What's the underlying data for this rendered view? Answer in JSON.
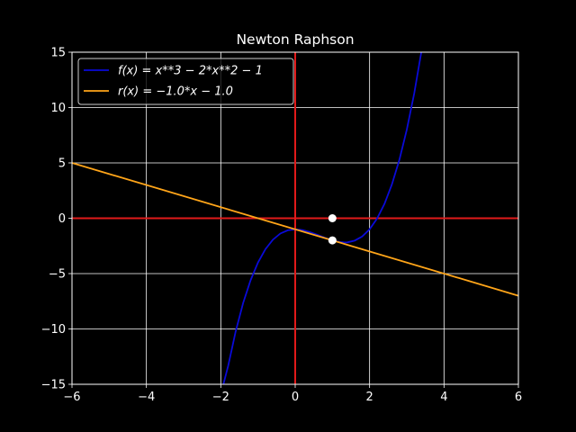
{
  "chart_data": {
    "type": "line",
    "title": "Newton Raphson",
    "xlabel": "",
    "ylabel": "",
    "xlim": [
      -6,
      6
    ],
    "ylim": [
      -15,
      15
    ],
    "xticks": [
      -6,
      -4,
      -2,
      0,
      2,
      4,
      6
    ],
    "yticks": [
      -15,
      -10,
      -5,
      0,
      5,
      10,
      15
    ],
    "grid": true,
    "legend_position": "top-left",
    "axis_lines": {
      "x0": 0,
      "y0": 0,
      "color": "#e11a1a"
    },
    "series": [
      {
        "name": "f(x) = x**3 − 2*x**2 − 1",
        "color": "#0a0ad8",
        "points": [
          [
            -1.93,
            -15
          ],
          [
            -1.8,
            -13.31
          ],
          [
            -1.6,
            -10.22
          ],
          [
            -1.4,
            -7.66
          ],
          [
            -1.2,
            -5.61
          ],
          [
            -1.0,
            -4.0
          ],
          [
            -0.8,
            -2.79
          ],
          [
            -0.6,
            -1.94
          ],
          [
            -0.4,
            -1.38
          ],
          [
            -0.2,
            -1.09
          ],
          [
            0.0,
            -1.0
          ],
          [
            0.2,
            -1.07
          ],
          [
            0.4,
            -1.26
          ],
          [
            0.6,
            -1.5
          ],
          [
            0.8,
            -1.77
          ],
          [
            1.0,
            -2.0
          ],
          [
            1.2,
            -2.15
          ],
          [
            1.333,
            -2.19
          ],
          [
            1.4,
            -2.18
          ],
          [
            1.6,
            -2.02
          ],
          [
            1.8,
            -1.65
          ],
          [
            2.0,
            -1.0
          ],
          [
            2.2,
            -0.03
          ],
          [
            2.4,
            1.3
          ],
          [
            2.6,
            3.06
          ],
          [
            2.8,
            5.27
          ],
          [
            3.0,
            8.0
          ],
          [
            3.2,
            11.29
          ],
          [
            3.39,
            15
          ]
        ]
      },
      {
        "name": "r(x) = −1.0*x − 1.0",
        "color": "#ffa519",
        "points": [
          [
            -6,
            5
          ],
          [
            6,
            -7
          ]
        ]
      }
    ],
    "markers": [
      {
        "x": 1.0,
        "y": 0.0,
        "color": "#ffffff"
      },
      {
        "x": 1.0,
        "y": -2.0,
        "color": "#ffffff"
      }
    ]
  }
}
